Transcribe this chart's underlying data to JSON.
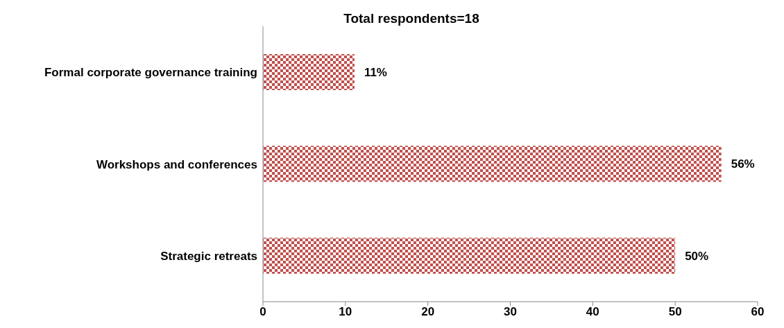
{
  "chart_data": {
    "type": "bar",
    "orientation": "horizontal",
    "title": "Total respondents=18",
    "categories": [
      "Formal corporate governance training",
      "Workshops and conferences",
      "Strategic retreats"
    ],
    "values": [
      11.1,
      55.6,
      50
    ],
    "value_labels": [
      "11%",
      "56%",
      "50%"
    ],
    "color": "#c0504d",
    "xlim": [
      0,
      60
    ],
    "xticks": [
      0,
      10,
      20,
      30,
      40,
      50,
      60
    ],
    "grid": false,
    "legend": false
  }
}
